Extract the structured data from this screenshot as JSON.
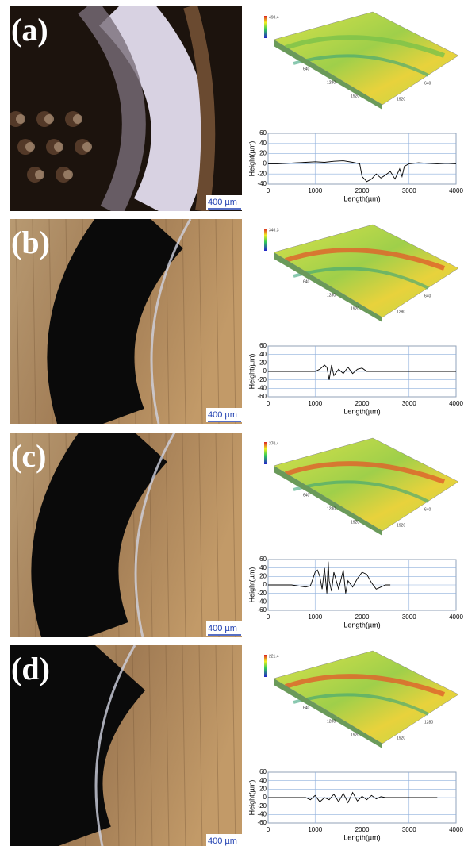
{
  "panels": [
    {
      "label": "(a)",
      "scale_bar": "400 µm",
      "surface_labels": [
        "498.4",
        "640",
        "1280",
        "1920",
        "1920",
        "640"
      ]
    },
    {
      "label": "(b)",
      "scale_bar": "400 µm",
      "surface_labels": [
        "346.3",
        "640",
        "1280",
        "1920",
        "1280",
        "640"
      ]
    },
    {
      "label": "(c)",
      "scale_bar": "400 µm",
      "surface_labels": [
        "370.4",
        "640",
        "1280",
        "1920",
        "1920",
        "640"
      ]
    },
    {
      "label": "(d)",
      "scale_bar": "400 µm",
      "surface_labels": [
        "221.4",
        "640",
        "1280",
        "1920",
        "1920",
        "1280"
      ]
    }
  ],
  "chart_data": [
    {
      "type": "line",
      "xlabel": "Length(µm)",
      "ylabel": "Height(µm)",
      "color": "#000000",
      "grid": true,
      "xlim": [
        0,
        4000
      ],
      "xticks": [
        0,
        1000,
        2000,
        3000,
        4000
      ],
      "ylim": [
        -40,
        60
      ],
      "yticks": [
        60,
        40,
        20,
        0,
        -20,
        -40
      ],
      "x": [
        0,
        200,
        400,
        600,
        800,
        1000,
        1200,
        1400,
        1600,
        1800,
        1950,
        2000,
        2100,
        2200,
        2300,
        2400,
        2500,
        2600,
        2700,
        2800,
        2850,
        2900,
        3000,
        3200,
        3400,
        3600,
        3800,
        4000
      ],
      "values": [
        0,
        0,
        1,
        2,
        3,
        4,
        3,
        5,
        6,
        3,
        0,
        -25,
        -35,
        -30,
        -20,
        -28,
        -22,
        -15,
        -30,
        -10,
        -25,
        -5,
        0,
        2,
        1,
        0,
        1,
        0
      ]
    },
    {
      "type": "line",
      "xlabel": "Length(µm)",
      "ylabel": "Height(µm)",
      "color": "#000000",
      "grid": true,
      "xlim": [
        0,
        4000
      ],
      "xticks": [
        0,
        1000,
        2000,
        3000,
        4000
      ],
      "ylim": [
        -60,
        60
      ],
      "yticks": [
        60,
        40,
        20,
        0,
        -20,
        -40,
        -60
      ],
      "x": [
        0,
        400,
        800,
        1000,
        1100,
        1200,
        1250,
        1300,
        1350,
        1400,
        1500,
        1600,
        1700,
        1800,
        1900,
        2000,
        2100,
        2200,
        2400,
        2800,
        3200,
        3600,
        4000
      ],
      "values": [
        0,
        0,
        0,
        0,
        5,
        15,
        10,
        -20,
        15,
        -10,
        5,
        -5,
        10,
        -5,
        5,
        8,
        0,
        0,
        0,
        0,
        0,
        0,
        0
      ]
    },
    {
      "type": "line",
      "xlabel": "Length(µm)",
      "ylabel": "Height(µm)",
      "color": "#000000",
      "grid": true,
      "xlim": [
        0,
        4000
      ],
      "xticks": [
        0,
        1000,
        2000,
        3000,
        4000
      ],
      "ylim": [
        -60,
        60
      ],
      "yticks": [
        60,
        40,
        20,
        0,
        -20,
        -40,
        -60
      ],
      "x": [
        0,
        500,
        800,
        900,
        1000,
        1050,
        1100,
        1150,
        1200,
        1250,
        1280,
        1300,
        1350,
        1400,
        1500,
        1600,
        1650,
        1700,
        1800,
        1900,
        2000,
        2100,
        2200,
        2300,
        2400,
        2500,
        2600
      ],
      "values": [
        0,
        0,
        -5,
        -2,
        30,
        35,
        20,
        -10,
        40,
        -20,
        55,
        10,
        -15,
        30,
        -10,
        35,
        -20,
        10,
        -5,
        15,
        30,
        25,
        5,
        -10,
        -5,
        0,
        0
      ]
    },
    {
      "type": "line",
      "xlabel": "Length(µm)",
      "ylabel": "Height(µm)",
      "color": "#000000",
      "grid": true,
      "xlim": [
        0,
        4000
      ],
      "xticks": [
        0,
        1000,
        2000,
        3000,
        4000
      ],
      "ylim": [
        -60,
        60
      ],
      "yticks": [
        60,
        40,
        20,
        0,
        -20,
        -40,
        -60
      ],
      "x": [
        0,
        800,
        900,
        1000,
        1100,
        1200,
        1300,
        1400,
        1500,
        1600,
        1700,
        1800,
        1900,
        2000,
        2100,
        2200,
        2300,
        2400,
        2500,
        2600,
        3000,
        3600
      ],
      "values": [
        0,
        0,
        -5,
        5,
        -10,
        0,
        -5,
        8,
        -10,
        10,
        -12,
        12,
        -8,
        3,
        -5,
        5,
        -3,
        2,
        0,
        0,
        0,
        0
      ]
    }
  ]
}
